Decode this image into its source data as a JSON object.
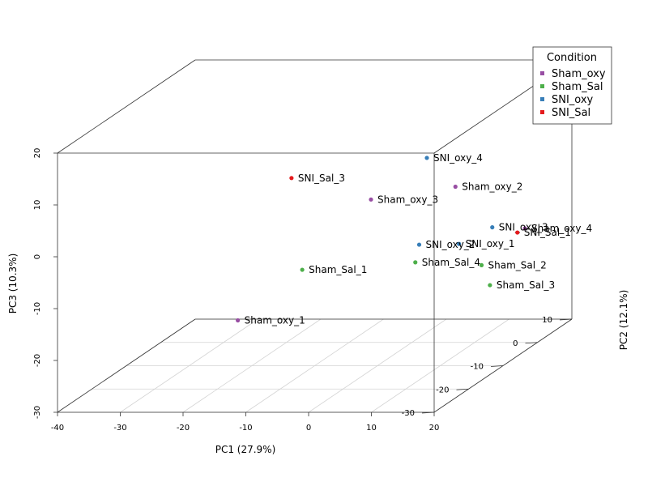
{
  "chart_data": {
    "type": "scatter",
    "subtype": "3d-scatter",
    "xlabel": "PC1 (27.9%)",
    "ylabel": "PC2 (12.1%)",
    "zlabel": "PC3 (10.3%)",
    "xlim": [
      -40,
      20
    ],
    "ylim": [
      -30,
      10
    ],
    "zlim": [
      -30,
      20
    ],
    "x_ticks": [
      "-40",
      "-30",
      "-20",
      "-10",
      "0",
      "10",
      "20"
    ],
    "y_ticks": [
      "-30",
      "-20",
      "-10",
      "0",
      "10"
    ],
    "z_ticks": [
      "-30",
      "-20",
      "-10",
      "0",
      "10",
      "20"
    ],
    "grid": true,
    "legend": {
      "title": "Condition",
      "placement": "top-right",
      "entries": [
        {
          "name": "Sham_oxy",
          "color": "#984ea3"
        },
        {
          "name": "Sham_Sal",
          "color": "#4daf4a"
        },
        {
          "name": "SNI_oxy",
          "color": "#377eb8"
        },
        {
          "name": "SNI_Sal",
          "color": "#e41a1c"
        }
      ]
    },
    "points": [
      {
        "label": "Sham_oxy_1",
        "group": "Sham_oxy",
        "x": -19.5,
        "y": -15,
        "z": -19
      },
      {
        "label": "Sham_oxy_2",
        "group": "Sham_oxy",
        "x": 2,
        "y": 9,
        "z": -4
      },
      {
        "label": "Sham_oxy_3",
        "group": "Sham_oxy",
        "x": 5,
        "y": -21,
        "z": 7
      },
      {
        "label": "Sham_oxy_4",
        "group": "Sham_oxy",
        "x": 18,
        "y": 0,
        "z": -8
      },
      {
        "label": "Sham_Sal_1",
        "group": "Sham_Sal",
        "x": -6.5,
        "y": -20,
        "z": -7
      },
      {
        "label": "Sham_Sal_2",
        "group": "Sham_Sal",
        "x": 10,
        "y": 2,
        "z": -16
      },
      {
        "label": "Sham_Sal_3",
        "group": "Sham_Sal",
        "x": 7.5,
        "y": 9,
        "z": -23
      },
      {
        "label": "Sham_Sal_4",
        "group": "Sham_Sal",
        "x": 0,
        "y": 1,
        "z": -15
      },
      {
        "label": "SNI_oxy_1",
        "group": "SNI_oxy",
        "x": 7.5,
        "y": 0,
        "z": -11
      },
      {
        "label": "SNI_oxy_2",
        "group": "SNI_oxy",
        "x": 5,
        "y": -7,
        "z": -8
      },
      {
        "label": "SNI_oxy_3",
        "group": "SNI_oxy",
        "x": 15,
        "y": -4,
        "z": -6
      },
      {
        "label": "SNI_oxy_4",
        "group": "SNI_oxy",
        "x": -2,
        "y": 8,
        "z": 2
      },
      {
        "label": "SNI_Sal_1",
        "group": "SNI_Sal",
        "x": 19,
        "y": -4,
        "z": -7
      },
      {
        "label": "SNI_Sal_3",
        "group": "SNI_Sal",
        "x": -11.5,
        "y": -14,
        "z": 8
      }
    ]
  }
}
